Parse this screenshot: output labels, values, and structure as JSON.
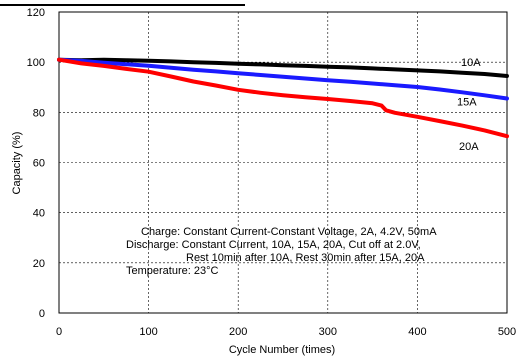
{
  "chart_data": {
    "type": "line",
    "title": "",
    "xlabel": "Cycle Number (times)",
    "ylabel": "Capacity (%)",
    "xlim": [
      0,
      500
    ],
    "ylim": [
      0,
      120
    ],
    "xticks": [
      0,
      100,
      200,
      300,
      400,
      500
    ],
    "yticks": [
      0,
      20,
      40,
      60,
      80,
      100,
      120
    ],
    "grid": "dashed",
    "series": [
      {
        "name": "10A",
        "color": "#000000",
        "x": [
          0,
          25,
          50,
          75,
          100,
          125,
          150,
          175,
          200,
          225,
          250,
          275,
          300,
          325,
          350,
          375,
          400,
          425,
          450,
          475,
          500
        ],
        "y": [
          101,
          100.8,
          101,
          100.8,
          100.6,
          100.3,
          100,
          99.7,
          99.4,
          99.1,
          98.8,
          98.5,
          98.2,
          97.9,
          97.5,
          97.1,
          96.7,
          96.3,
          95.8,
          95.3,
          94.5
        ]
      },
      {
        "name": "15A",
        "color": "#1a1aff",
        "x": [
          0,
          25,
          50,
          75,
          100,
          125,
          150,
          175,
          200,
          225,
          250,
          275,
          300,
          325,
          350,
          375,
          400,
          425,
          450,
          475,
          500
        ],
        "y": [
          101,
          100.5,
          99.8,
          99.2,
          98.6,
          97.8,
          97,
          96.3,
          95.6,
          94.9,
          94.2,
          93.5,
          92.8,
          92.2,
          91.5,
          90.8,
          90.1,
          89.1,
          88,
          86.8,
          85.5
        ]
      },
      {
        "name": "20A",
        "color": "#ff0000",
        "x": [
          0,
          25,
          50,
          75,
          100,
          125,
          150,
          175,
          200,
          225,
          250,
          275,
          300,
          325,
          350,
          360,
          365,
          375,
          400,
          425,
          450,
          475,
          500
        ],
        "y": [
          101,
          99.5,
          98.5,
          97.3,
          96.2,
          94.3,
          92.3,
          90.7,
          89,
          87.8,
          86.8,
          86,
          85.3,
          84.5,
          83.6,
          82.7,
          80.8,
          79.8,
          78.2,
          76.5,
          74.7,
          72.8,
          70.5
        ]
      }
    ],
    "annotations": [
      "Charge: Constant Current-Constant Voltage, 2A, 4.2V, 50mA",
      "Discharge: Constant Current, 10A, 15A, 20A, Cut off at 2.0V,",
      "Rest 10min after 10A, Rest 30min after 15A, 20A",
      "Temperature: 23°C"
    ]
  }
}
